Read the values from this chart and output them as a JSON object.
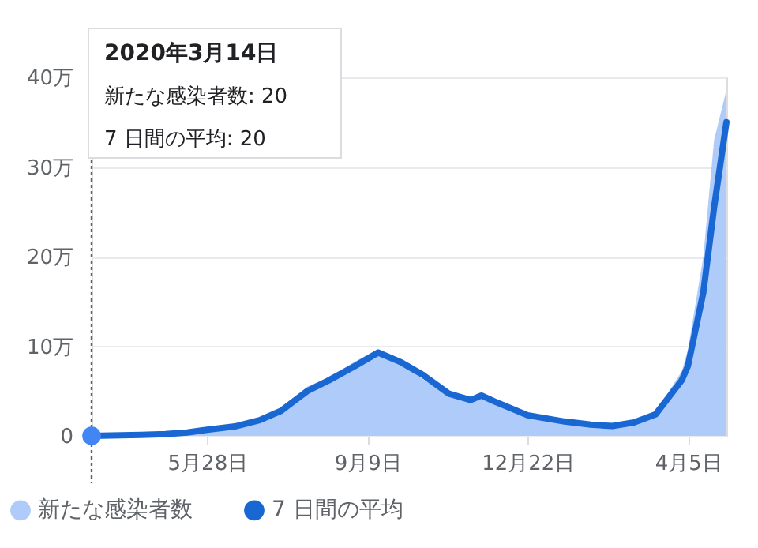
{
  "chart_data": {
    "type": "line",
    "x": [
      "2020-03-14",
      "2020-04-15",
      "2020-05-01",
      "2020-05-15",
      "2020-05-28",
      "2020-06-15",
      "2020-07-01",
      "2020-07-15",
      "2020-08-01",
      "2020-08-15",
      "2020-09-01",
      "2020-09-16",
      "2020-10-01",
      "2020-10-15",
      "2020-11-01",
      "2020-11-15",
      "2020-11-22",
      "2020-12-01",
      "2020-12-22",
      "2021-01-15",
      "2021-02-01",
      "2021-02-15",
      "2021-03-01",
      "2021-03-15",
      "2021-04-01",
      "2021-04-05",
      "2021-04-15",
      "2021-04-22",
      "2021-04-30"
    ],
    "series": [
      {
        "name": "新たな感染者数",
        "type": "area",
        "color": "#aecbfa",
        "values": [
          0,
          0.11,
          0.23,
          0.4,
          0.7,
          1.1,
          1.9,
          2.9,
          5.5,
          6.5,
          8.3,
          9.7,
          8.0,
          6.3,
          4.6,
          4.1,
          4.6,
          3.6,
          2.4,
          1.5,
          1.2,
          1.15,
          1.6,
          2.6,
          7.2,
          9.6,
          20,
          33,
          38.6
        ]
      },
      {
        "name": "7 日間の平均",
        "color": "#1967d2",
        "values": [
          0,
          0.1,
          0.2,
          0.38,
          0.68,
          1.05,
          1.75,
          2.8,
          5.0,
          6.2,
          7.8,
          9.3,
          8.2,
          6.8,
          4.7,
          4.0,
          4.5,
          3.8,
          2.3,
          1.6,
          1.25,
          1.1,
          1.5,
          2.4,
          6.2,
          7.8,
          16,
          25.5,
          35
        ]
      }
    ],
    "xlim": [
      "2020-03-14",
      "2021-04-30"
    ],
    "xticks": [
      {
        "value": "2020-05-28",
        "label": "5月28日"
      },
      {
        "value": "2020-09-09",
        "label": "9月9日"
      },
      {
        "value": "2020-12-22",
        "label": "12月22日"
      },
      {
        "value": "2021-04-05",
        "label": "4月5日"
      }
    ],
    "ylim": [
      0,
      40
    ],
    "yticks": [
      0,
      {
        "value": 10,
        "label": "10万"
      },
      {
        "value": 20,
        "label": "20万"
      },
      {
        "value": 30,
        "label": "30万"
      },
      {
        "value": 40,
        "label": "40万"
      }
    ],
    "grid": "y",
    "legend": "bottom left",
    "marker": "none",
    "line_style": "solid",
    "ref_lines": [
      {
        "axis": "x",
        "value": "2020-03-14",
        "line_style": "dotted",
        "color": "#5f6368"
      }
    ],
    "annotations": [
      "2020年3月14日",
      "新たな感染者数: 20",
      "7 日間の平均: 20"
    ]
  }
}
